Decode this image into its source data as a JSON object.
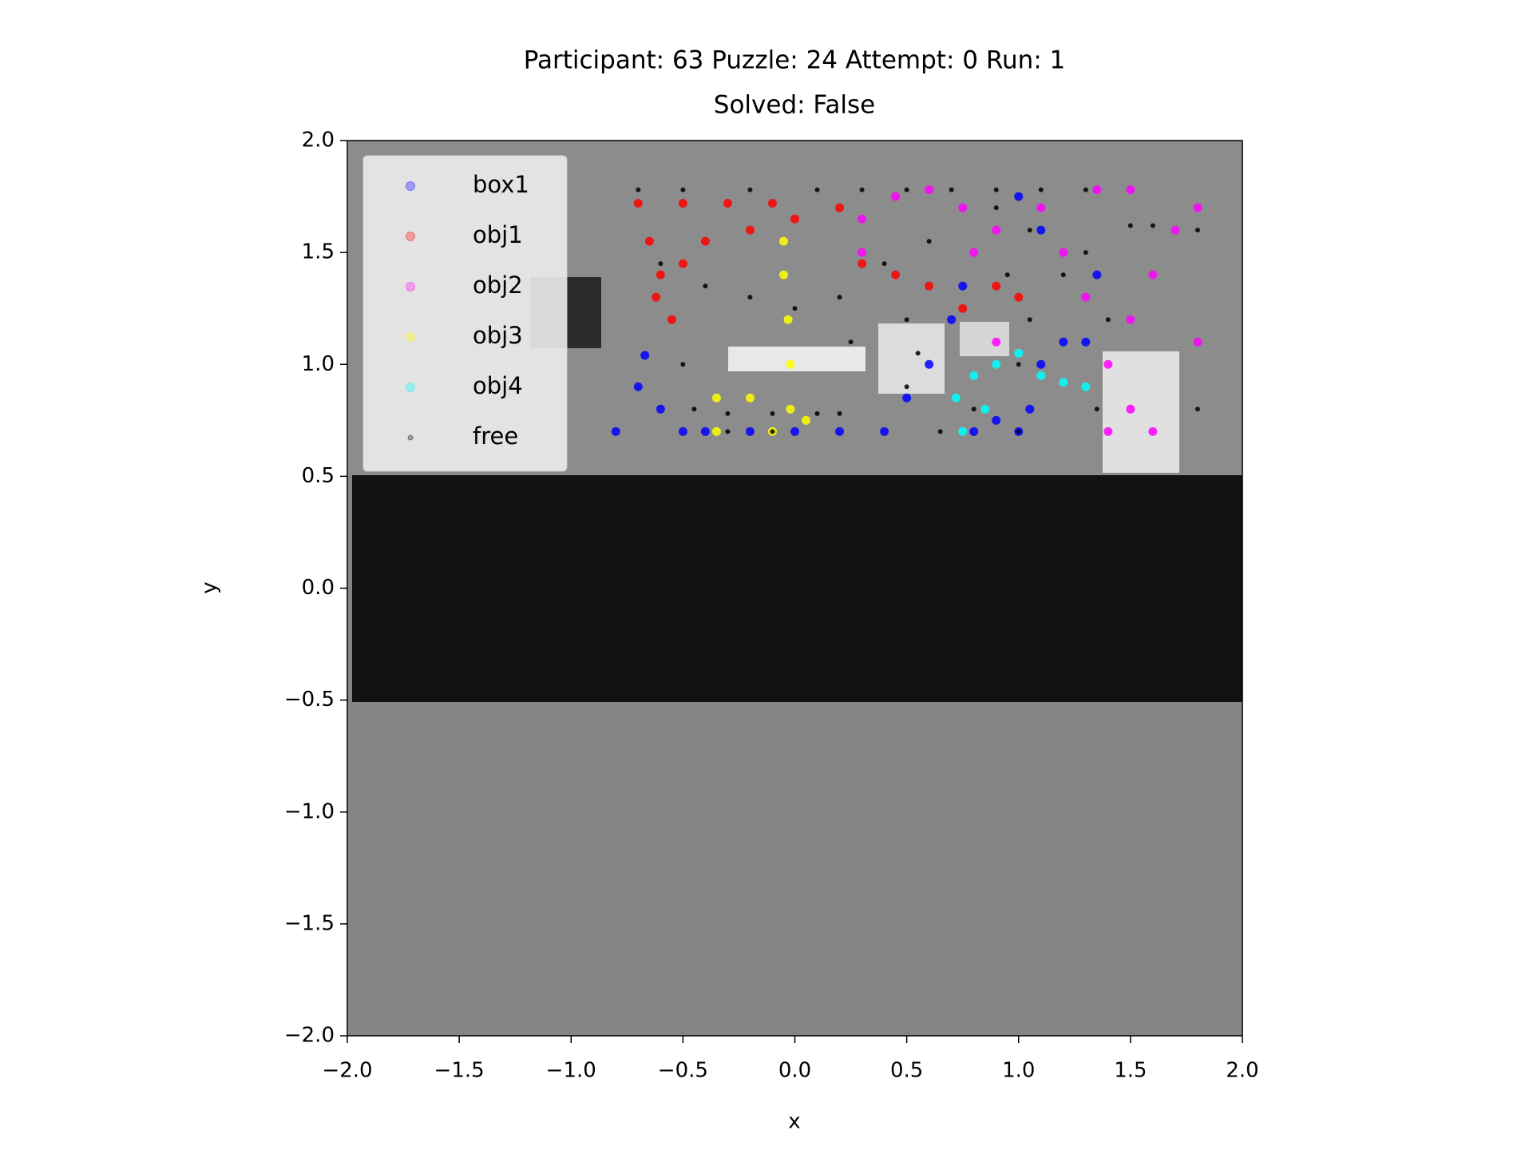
{
  "chart_data": {
    "type": "scatter",
    "title": "Participant: 63 Puzzle: 24 Attempt: 0 Run: 1",
    "subtitle": "Solved: False",
    "x_label": "x",
    "y_label": "y",
    "xlim": [
      -2,
      2
    ],
    "ylim": [
      -2,
      2
    ],
    "xticks": [
      {
        "value": -2,
        "label": "−2.0"
      },
      {
        "value": -1.5,
        "label": "−1.5"
      },
      {
        "value": -1,
        "label": "−1.0"
      },
      {
        "value": -0.5,
        "label": "−0.5"
      },
      {
        "value": 0,
        "label": "0.0"
      },
      {
        "value": 0.5,
        "label": "0.5"
      },
      {
        "value": 1,
        "label": "1.0"
      },
      {
        "value": 1.5,
        "label": "1.5"
      },
      {
        "value": 2,
        "label": "2.0"
      }
    ],
    "yticks": [
      {
        "value": -2,
        "label": "−2.0"
      },
      {
        "value": -1.5,
        "label": "−1.5"
      },
      {
        "value": -1,
        "label": "−1.0"
      },
      {
        "value": -0.5,
        "label": "−0.5"
      },
      {
        "value": 0,
        "label": "0.0"
      },
      {
        "value": 0.5,
        "label": "0.5"
      },
      {
        "value": 1,
        "label": "1.0"
      },
      {
        "value": 1.5,
        "label": "1.5"
      },
      {
        "value": 2,
        "label": "2.0"
      }
    ],
    "legend": "upper left",
    "series": [
      {
        "name": "box1",
        "color": "#0000ff",
        "marker": "o",
        "x": [
          -0.8,
          -0.7,
          -0.67,
          -0.6,
          -0.5,
          -0.4,
          -0.2,
          0,
          0.2,
          0.4,
          0.5,
          0.6,
          0.7,
          0.75,
          0.8,
          0.9,
          1.0,
          1.05,
          1.1,
          1.2,
          1.3,
          1.0,
          1.1,
          1.35
        ],
        "y": [
          0.7,
          0.9,
          1.04,
          0.8,
          0.7,
          0.7,
          0.7,
          0.7,
          0.7,
          0.7,
          0.85,
          1.0,
          1.2,
          1.35,
          0.7,
          0.75,
          0.7,
          0.8,
          1.0,
          1.1,
          1.1,
          1.75,
          1.6,
          1.4
        ]
      },
      {
        "name": "obj1",
        "color": "#ff0000",
        "marker": "o",
        "x": [
          -0.7,
          -0.65,
          -0.6,
          -0.55,
          -0.5,
          -0.4,
          -0.2,
          0,
          0.2,
          -0.5,
          -0.3,
          -0.1,
          0.3,
          0.45,
          0.6,
          0.75,
          0.9,
          1.0,
          -0.62
        ],
        "y": [
          1.72,
          1.55,
          1.4,
          1.2,
          1.45,
          1.55,
          1.6,
          1.65,
          1.7,
          1.72,
          1.72,
          1.72,
          1.45,
          1.4,
          1.35,
          1.25,
          1.35,
          1.3,
          1.3
        ]
      },
      {
        "name": "obj2",
        "color": "#ff00ff",
        "marker": "o",
        "x": [
          0.3,
          0.3,
          0.45,
          0.6,
          0.75,
          0.8,
          0.9,
          0.9,
          1.1,
          1.2,
          1.3,
          1.4,
          1.5,
          1.5,
          1.6,
          1.7,
          1.8,
          1.8,
          1.4,
          1.6,
          1.35,
          1.5
        ],
        "y": [
          1.5,
          1.65,
          1.75,
          1.78,
          1.7,
          1.5,
          1.6,
          1.1,
          1.7,
          1.5,
          1.3,
          1.0,
          0.8,
          1.2,
          1.4,
          1.6,
          1.7,
          1.1,
          0.7,
          0.7,
          1.78,
          1.78
        ]
      },
      {
        "name": "obj3",
        "color": "#ffff00",
        "marker": "o",
        "x": [
          -0.35,
          -0.35,
          -0.05,
          -0.05,
          -0.03,
          -0.02,
          -0.02,
          -0.1,
          -0.2,
          0.05
        ],
        "y": [
          0.7,
          0.85,
          1.55,
          1.4,
          1.2,
          1.0,
          0.8,
          0.7,
          0.85,
          0.75
        ]
      },
      {
        "name": "obj4",
        "color": "#00ffff",
        "marker": "o",
        "x": [
          0.75,
          0.72,
          0.8,
          0.9,
          1.0,
          1.1,
          1.2,
          1.3,
          0.85
        ],
        "y": [
          0.7,
          0.85,
          0.95,
          1.0,
          1.05,
          0.95,
          0.92,
          0.9,
          0.8
        ]
      },
      {
        "name": "free",
        "color": "#000000",
        "marker": ".",
        "x": [
          -0.7,
          -0.5,
          -0.2,
          0.1,
          0.3,
          0.5,
          0.7,
          0.9,
          1.1,
          1.3,
          -0.6,
          -0.4,
          -0.2,
          0,
          0.2,
          0.4,
          -0.5,
          -0.45,
          -0.3,
          -0.1,
          0.1,
          0.2,
          -0.3,
          -0.1,
          0.5,
          0.55,
          0.5,
          1.05,
          1.05,
          1.0,
          0.95,
          1.2,
          1.3,
          1.4,
          1.5,
          1.6,
          1.8,
          1.8,
          1.35,
          1.0,
          0.8,
          0.65,
          0.25,
          0.6,
          0.9
        ],
        "y": [
          1.78,
          1.78,
          1.78,
          1.78,
          1.78,
          1.78,
          1.78,
          1.78,
          1.78,
          1.78,
          1.45,
          1.35,
          1.3,
          1.25,
          1.3,
          1.45,
          1.0,
          0.8,
          0.78,
          0.78,
          0.78,
          0.78,
          0.7,
          0.7,
          0.9,
          1.05,
          1.2,
          1.6,
          1.2,
          1.0,
          1.4,
          1.4,
          1.5,
          1.2,
          1.62,
          1.62,
          1.6,
          0.8,
          0.8,
          0.7,
          0.8,
          0.7,
          1.1,
          1.55,
          1.7
        ]
      }
    ]
  }
}
